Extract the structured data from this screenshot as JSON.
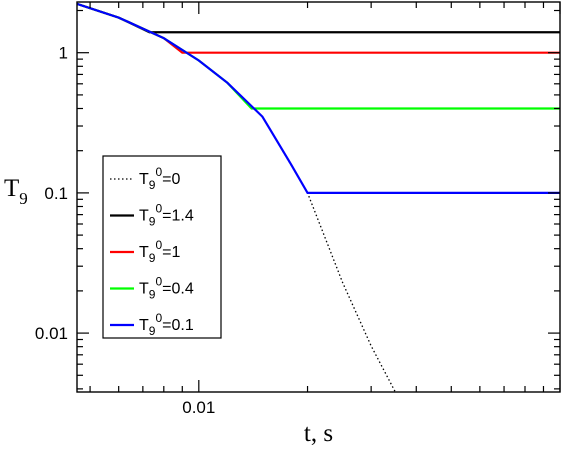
{
  "chart_data": {
    "type": "line",
    "title": "",
    "xlabel": "t, s",
    "ylabel": "T9",
    "x_scale": "log",
    "y_scale": "log",
    "xlim": [
      0.0046,
      0.1
    ],
    "ylim": [
      0.0038,
      2.3
    ],
    "grid": false,
    "legend_position": "center-left",
    "x_ticks": [
      {
        "value": 0.01,
        "label": "0.01"
      }
    ],
    "y_ticks": [
      {
        "value": 0.01,
        "label": "0.01"
      },
      {
        "value": 0.1,
        "label": "0.1"
      },
      {
        "value": 1,
        "label": "1"
      }
    ],
    "series": [
      {
        "name": "T9^0=0",
        "label_base": "T",
        "label_sub": "9",
        "label_sup": "0",
        "label_rest": "=0",
        "color": "#000000",
        "style": "dotted",
        "x": [
          0.0046,
          0.006,
          0.008,
          0.01,
          0.012,
          0.015,
          0.02,
          0.025,
          0.03,
          0.035
        ],
        "y": [
          2.23,
          1.78,
          1.27,
          0.88,
          0.61,
          0.35,
          0.1,
          0.023,
          0.0081,
          0.0038
        ]
      },
      {
        "name": "T9^0=1.4",
        "label_base": "T",
        "label_sub": "9",
        "label_sup": "0",
        "label_rest": "=1.4",
        "color": "#000000",
        "style": "solid",
        "x": [
          0.0046,
          0.006,
          0.0073,
          0.1
        ],
        "y": [
          2.23,
          1.78,
          1.4,
          1.4
        ]
      },
      {
        "name": "T9^0=1",
        "label_base": "T",
        "label_sub": "9",
        "label_sup": "0",
        "label_rest": "=1",
        "color": "#ff0000",
        "style": "solid",
        "x": [
          0.0046,
          0.006,
          0.008,
          0.009,
          0.1
        ],
        "y": [
          2.23,
          1.78,
          1.27,
          1.0,
          1.0
        ]
      },
      {
        "name": "T9^0=0.4",
        "label_base": "T",
        "label_sub": "9",
        "label_sup": "0",
        "label_rest": "=0.4",
        "color": "#00ff00",
        "style": "solid",
        "x": [
          0.0046,
          0.006,
          0.008,
          0.01,
          0.012,
          0.014,
          0.1
        ],
        "y": [
          2.23,
          1.78,
          1.27,
          0.88,
          0.61,
          0.4,
          0.4
        ]
      },
      {
        "name": "T9^0=0.1",
        "label_base": "T",
        "label_sub": "9",
        "label_sup": "0",
        "label_rest": "=0.1",
        "color": "#0000ff",
        "style": "solid",
        "x": [
          0.0046,
          0.006,
          0.008,
          0.01,
          0.012,
          0.015,
          0.018,
          0.02,
          0.1
        ],
        "y": [
          2.23,
          1.78,
          1.27,
          0.88,
          0.61,
          0.35,
          0.16,
          0.1,
          0.1
        ]
      }
    ]
  }
}
